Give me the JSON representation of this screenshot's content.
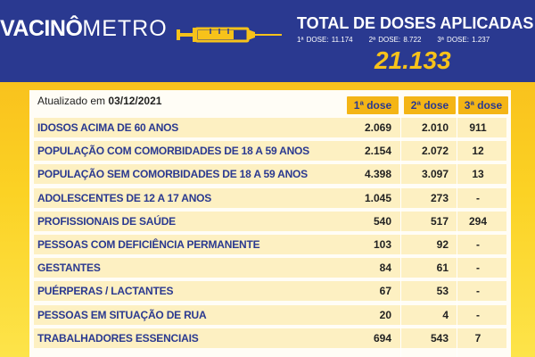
{
  "header": {
    "logo_part1": "VACIN",
    "logo_part2": "Ô",
    "logo_part3": "METRO",
    "total_title": "TOTAL DE DOSES APLICADAS",
    "dose1": "1ª DOSE: 11.174",
    "dose2": "2ª DOSE: 8.722",
    "dose3": "3ª DOSE: 1.237",
    "total_value": "21.133"
  },
  "table": {
    "updated_label": "Atualizado em",
    "updated_date": "03/12/2021",
    "columns": [
      "1ª dose",
      "2ª dose",
      "3ª dose"
    ],
    "rows": [
      {
        "group": "IDOSOS ACIMA DE 60 ANOS",
        "d1": "2.069",
        "d2": "2.010",
        "d3": "911"
      },
      {
        "group": "POPULAÇÃO COM COMORBIDADES DE 18 A 59 ANOS",
        "d1": "2.154",
        "d2": "2.072",
        "d3": "12"
      },
      {
        "group": "POPULAÇÃO SEM COMORBIDADES DE 18 A 59 ANOS",
        "d1": "4.398",
        "d2": "3.097",
        "d3": "13"
      },
      {
        "group": "ADOLESCENTES DE 12 A 17 ANOS",
        "d1": "1.045",
        "d2": "273",
        "d3": "-"
      },
      {
        "group": "PROFISSIONAIS DE SAÚDE",
        "d1": "540",
        "d2": "517",
        "d3": "294"
      },
      {
        "group": "PESSOAS COM DEFICIÊNCIA PERMANENTE",
        "d1": "103",
        "d2": "92",
        "d3": "-"
      },
      {
        "group": "GESTANTES",
        "d1": "84",
        "d2": "61",
        "d3": "-"
      },
      {
        "group": "PUÉRPERAS / LACTANTES",
        "d1": "67",
        "d2": "53",
        "d3": "-"
      },
      {
        "group": "PESSOAS EM SITUAÇÃO DE RUA",
        "d1": "20",
        "d2": "4",
        "d3": "-"
      },
      {
        "group": "TRABALHADORES ESSENCIAIS",
        "d1": "694",
        "d2": "543",
        "d3": "7"
      }
    ]
  },
  "colors": {
    "navy": "#2a3990",
    "yellow": "#f7c21a",
    "row_bg": "#fdf0c2"
  },
  "icons": {
    "syringe": "syringe-icon"
  }
}
